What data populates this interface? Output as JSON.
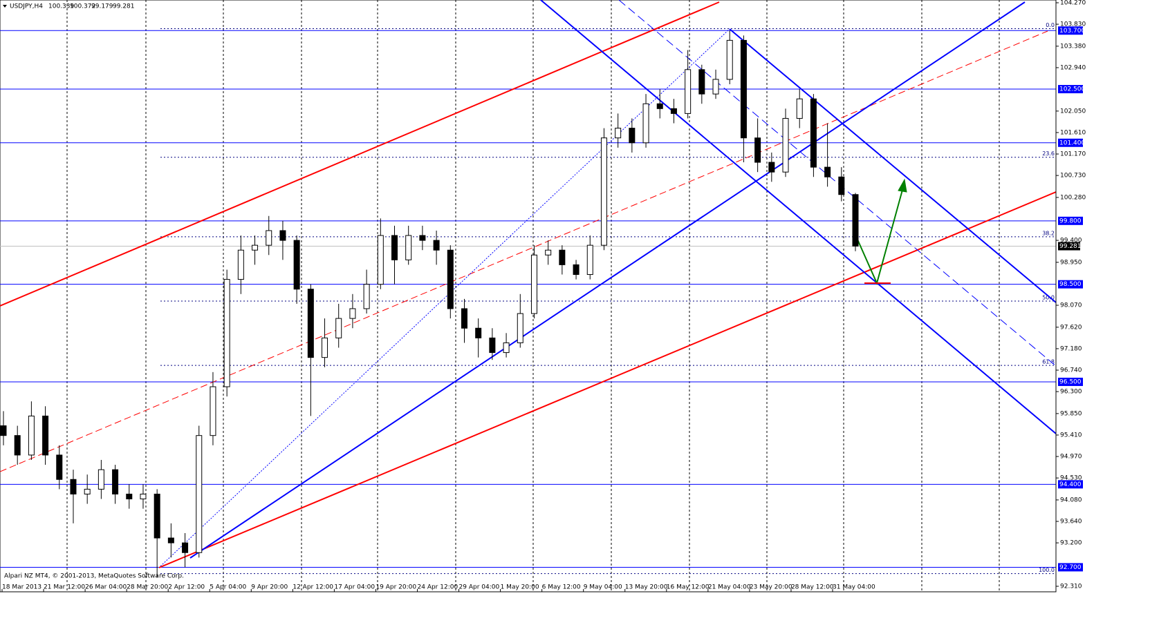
{
  "chart_data": {
    "type": "candlestick",
    "title": "USDJPY,H4",
    "footer": "Alpari NZ MT4, © 2001-2013, MetaQuotes Software Corp.",
    "ylim": [
      92.31,
      104.27
    ],
    "yticks": [
      {
        "value": 104.27,
        "label": "104.270"
      },
      {
        "value": 103.83,
        "label": "103.830"
      },
      {
        "value": 103.38,
        "label": "103.380"
      },
      {
        "value": 102.94,
        "label": "102.940"
      },
      {
        "value": 102.05,
        "label": "102.050"
      },
      {
        "value": 101.61,
        "label": "101.610"
      },
      {
        "value": 101.17,
        "label": "101.170"
      },
      {
        "value": 100.73,
        "label": "100.730"
      },
      {
        "value": 100.28,
        "label": "100.280"
      },
      {
        "value": 99.4,
        "label": "99.400"
      },
      {
        "value": 98.95,
        "label": "98.950"
      },
      {
        "value": 98.07,
        "label": "98.070"
      },
      {
        "value": 97.62,
        "label": "97.620"
      },
      {
        "value": 97.18,
        "label": "97.180"
      },
      {
        "value": 96.74,
        "label": "96.740"
      },
      {
        "value": 96.3,
        "label": "96.300"
      },
      {
        "value": 95.85,
        "label": "95.850"
      },
      {
        "value": 95.41,
        "label": "95.410"
      },
      {
        "value": 94.97,
        "label": "94.970"
      },
      {
        "value": 94.53,
        "label": "94.530"
      },
      {
        "value": 94.08,
        "label": "94.080"
      },
      {
        "value": 93.64,
        "label": "93.640"
      },
      {
        "value": 93.2,
        "label": "93.200"
      },
      {
        "value": 92.31,
        "label": "92.310"
      }
    ],
    "x_labels": [
      "18 Mar 2013",
      "21 Mar 12:00",
      "26 Mar 04:00",
      "28 Mar 20:00",
      "2 Apr 12:00",
      "5 Apr 04:00",
      "9 Apr 20:00",
      "12 Apr 12:00",
      "17 Apr 04:00",
      "19 Apr 20:00",
      "24 Apr 12:00",
      "29 Apr 04:00",
      "1 May 20:00",
      "6 May 12:00",
      "9 May 04:00",
      "13 May 20:00",
      "16 May 12:00",
      "21 May 04:00",
      "23 May 20:00",
      "28 May 12:00",
      "31 May 04:00"
    ],
    "levels": [
      {
        "value": 103.7,
        "label": "103.700"
      },
      {
        "value": 102.5,
        "label": "102.500"
      },
      {
        "value": 101.4,
        "label": "101.400"
      },
      {
        "value": 99.8,
        "label": "99.800"
      },
      {
        "value": 98.5,
        "label": "98.500"
      },
      {
        "value": 96.5,
        "label": "96.500"
      },
      {
        "value": 94.4,
        "label": "94.400"
      },
      {
        "value": 92.7,
        "label": "92.700"
      }
    ],
    "fibonacci": {
      "high": 103.74,
      "low": 92.57,
      "levels": [
        {
          "value": 0,
          "label": "0.0"
        },
        23.6,
        38.2,
        {
          "value": 50,
          "label": "50.0"
        },
        61.8,
        {
          "value": 100,
          "label": "100.0"
        }
      ]
    },
    "candles": [
      [
        95.6,
        95.9,
        95.2,
        95.4
      ],
      [
        95.4,
        95.6,
        94.8,
        95.0
      ],
      [
        95.0,
        96.1,
        94.9,
        95.8
      ],
      [
        95.8,
        96.0,
        94.8,
        95.0
      ],
      [
        95.0,
        95.2,
        94.3,
        94.5
      ],
      [
        94.5,
        94.7,
        93.6,
        94.2
      ],
      [
        94.2,
        94.6,
        94.0,
        94.3
      ],
      [
        94.3,
        94.9,
        94.1,
        94.7
      ],
      [
        94.7,
        94.8,
        94.0,
        94.2
      ],
      [
        94.2,
        94.4,
        93.9,
        94.1
      ],
      [
        94.1,
        94.4,
        93.9,
        94.2
      ],
      [
        94.2,
        94.3,
        92.5,
        93.3
      ],
      [
        93.3,
        93.6,
        92.9,
        93.2
      ],
      [
        93.2,
        93.4,
        92.7,
        93.0
      ],
      [
        93.0,
        95.6,
        92.9,
        95.4
      ],
      [
        95.4,
        96.7,
        95.2,
        96.4
      ],
      [
        96.4,
        98.8,
        96.2,
        98.6
      ],
      [
        98.6,
        99.5,
        98.3,
        99.2
      ],
      [
        99.2,
        99.5,
        98.9,
        99.3
      ],
      [
        99.3,
        99.9,
        99.1,
        99.6
      ],
      [
        99.6,
        99.8,
        99.0,
        99.4
      ],
      [
        99.4,
        99.5,
        98.1,
        98.4
      ],
      [
        98.4,
        98.5,
        95.8,
        97.0
      ],
      [
        97.0,
        97.8,
        96.8,
        97.4
      ],
      [
        97.4,
        98.1,
        97.2,
        97.8
      ],
      [
        97.8,
        98.3,
        97.6,
        98.0
      ],
      [
        98.0,
        98.8,
        97.9,
        98.5
      ],
      [
        98.5,
        99.85,
        98.4,
        99.5
      ],
      [
        99.5,
        99.7,
        98.5,
        99.0
      ],
      [
        99.0,
        99.7,
        98.9,
        99.5
      ],
      [
        99.5,
        99.7,
        99.2,
        99.4
      ],
      [
        99.4,
        99.6,
        98.9,
        99.2
      ],
      [
        99.2,
        99.3,
        97.8,
        98.0
      ],
      [
        98.0,
        98.2,
        97.3,
        97.6
      ],
      [
        97.6,
        97.8,
        97.0,
        97.4
      ],
      [
        97.4,
        97.6,
        96.95,
        97.1
      ],
      [
        97.1,
        97.5,
        97.0,
        97.3
      ],
      [
        97.3,
        98.3,
        97.2,
        97.9
      ],
      [
        97.9,
        99.3,
        97.8,
        99.1
      ],
      [
        99.1,
        99.4,
        98.9,
        99.2
      ],
      [
        99.2,
        99.3,
        98.7,
        98.9
      ],
      [
        98.9,
        99.0,
        98.6,
        98.7
      ],
      [
        98.7,
        99.5,
        98.6,
        99.3
      ],
      [
        99.3,
        101.7,
        99.2,
        101.5
      ],
      [
        101.5,
        102.0,
        101.3,
        101.7
      ],
      [
        101.7,
        101.9,
        101.2,
        101.4
      ],
      [
        101.4,
        102.4,
        101.3,
        102.2
      ],
      [
        102.2,
        102.5,
        101.9,
        102.1
      ],
      [
        102.1,
        102.3,
        101.8,
        102.0
      ],
      [
        102.0,
        103.3,
        101.9,
        102.9
      ],
      [
        102.9,
        103.0,
        102.2,
        102.4
      ],
      [
        102.4,
        102.9,
        102.3,
        102.7
      ],
      [
        102.7,
        103.7,
        102.6,
        103.5
      ],
      [
        103.5,
        103.6,
        101.0,
        101.5
      ],
      [
        101.5,
        101.9,
        100.8,
        101.0
      ],
      [
        101.0,
        101.2,
        100.6,
        100.8
      ],
      [
        100.8,
        102.1,
        100.7,
        101.9
      ],
      [
        101.9,
        102.5,
        101.7,
        102.3
      ],
      [
        102.3,
        102.4,
        100.7,
        100.9
      ],
      [
        100.9,
        101.8,
        100.5,
        100.7
      ],
      [
        100.7,
        100.9,
        100.2,
        100.339
      ],
      [
        100.339,
        100.372,
        99.179,
        99.281
      ]
    ]
  }
}
